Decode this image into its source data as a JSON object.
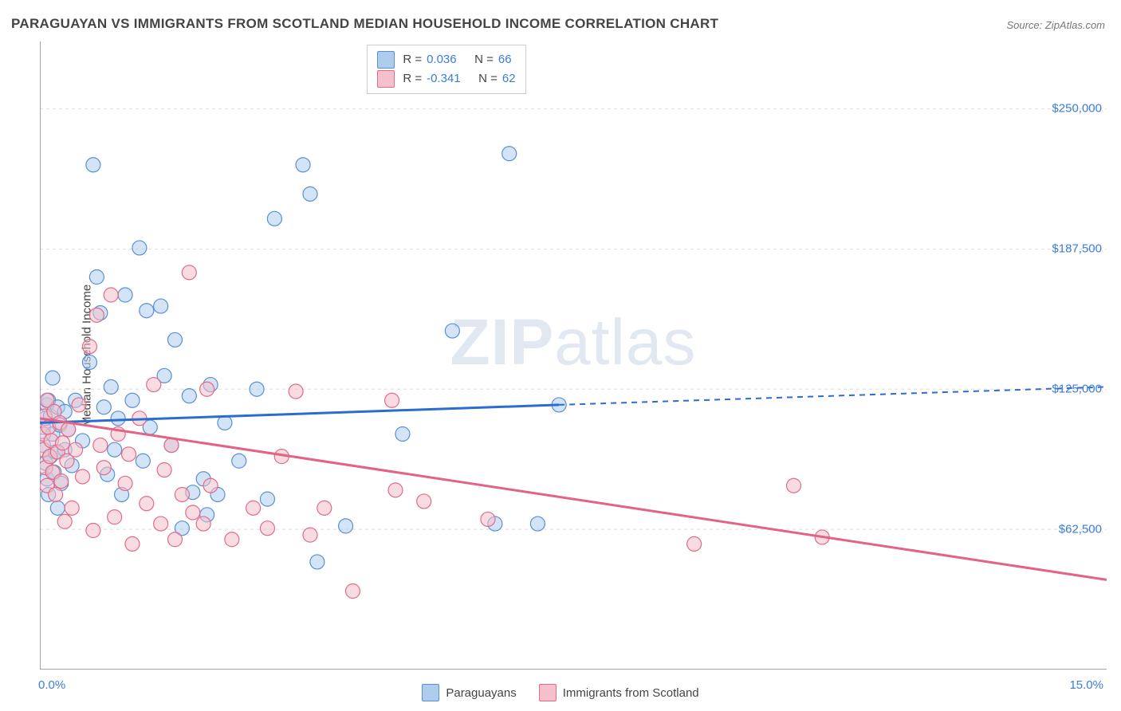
{
  "title": "PARAGUAYAN VS IMMIGRANTS FROM SCOTLAND MEDIAN HOUSEHOLD INCOME CORRELATION CHART",
  "source": "Source: ZipAtlas.com",
  "ylabel": "Median Household Income",
  "watermark_a": "ZIP",
  "watermark_b": "atlas",
  "chart": {
    "type": "scatter",
    "background_color": "#ffffff",
    "grid_color": "#dddddd",
    "axis_color": "#888888",
    "xlim": [
      0,
      15
    ],
    "ylim": [
      0,
      280000
    ],
    "x_ticks": [
      {
        "v": 0,
        "label": "0.0%"
      },
      {
        "v": 15,
        "label": "15.0%"
      }
    ],
    "y_gridlines": [
      62500,
      125000,
      187500,
      250000
    ],
    "y_tick_labels": {
      "62500": "$62,500",
      "125000": "$125,000",
      "187500": "$187,500",
      "250000": "$250,000"
    },
    "series": [
      {
        "name": "Paraguayans",
        "fill": "#aecdee",
        "stroke": "#5a8fd6",
        "fill_opacity": 0.55,
        "marker_radius": 9,
        "R_label": "R =",
        "R": "0.036",
        "N_label": "N =",
        "N": "66",
        "trend": {
          "x1": 0,
          "y1": 110000,
          "x2": 7.3,
          "y2": 118000,
          "x2_ext": 15,
          "y2_ext": 126000,
          "color": "#2b6cd1",
          "width": 3
        },
        "points": [
          [
            0.05,
            108000
          ],
          [
            0.05,
            100000
          ],
          [
            0.08,
            112000
          ],
          [
            0.08,
            92000
          ],
          [
            0.1,
            118000
          ],
          [
            0.1,
            85000
          ],
          [
            0.12,
            120000
          ],
          [
            0.12,
            78000
          ],
          [
            0.15,
            113000
          ],
          [
            0.15,
            95000
          ],
          [
            0.18,
            105000
          ],
          [
            0.18,
            130000
          ],
          [
            0.2,
            88000
          ],
          [
            0.22,
            97000
          ],
          [
            0.25,
            117000
          ],
          [
            0.25,
            72000
          ],
          [
            0.28,
            109000
          ],
          [
            0.3,
            83000
          ],
          [
            0.35,
            115000
          ],
          [
            0.35,
            98000
          ],
          [
            0.4,
            107000
          ],
          [
            0.45,
            91000
          ],
          [
            0.5,
            120000
          ],
          [
            0.6,
            102000
          ],
          [
            0.7,
            137000
          ],
          [
            0.75,
            225000
          ],
          [
            0.8,
            175000
          ],
          [
            0.85,
            159000
          ],
          [
            0.9,
            117000
          ],
          [
            0.95,
            87000
          ],
          [
            1.0,
            126000
          ],
          [
            1.05,
            98000
          ],
          [
            1.1,
            112000
          ],
          [
            1.15,
            78000
          ],
          [
            1.2,
            167000
          ],
          [
            1.3,
            120000
          ],
          [
            1.4,
            188000
          ],
          [
            1.45,
            93000
          ],
          [
            1.5,
            160000
          ],
          [
            1.55,
            108000
          ],
          [
            1.7,
            162000
          ],
          [
            1.75,
            131000
          ],
          [
            1.85,
            100000
          ],
          [
            1.9,
            147000
          ],
          [
            2.0,
            63000
          ],
          [
            2.1,
            122000
          ],
          [
            2.15,
            79000
          ],
          [
            2.3,
            85000
          ],
          [
            2.35,
            69000
          ],
          [
            2.4,
            127000
          ],
          [
            2.5,
            78000
          ],
          [
            2.6,
            110000
          ],
          [
            2.8,
            93000
          ],
          [
            3.05,
            125000
          ],
          [
            3.2,
            76000
          ],
          [
            3.3,
            201000
          ],
          [
            3.7,
            225000
          ],
          [
            3.8,
            212000
          ],
          [
            3.9,
            48000
          ],
          [
            4.3,
            64000
          ],
          [
            5.1,
            105000
          ],
          [
            5.8,
            151000
          ],
          [
            6.4,
            65000
          ],
          [
            6.6,
            230000
          ],
          [
            7.0,
            65000
          ],
          [
            7.3,
            118000
          ]
        ]
      },
      {
        "name": "Immigrants from Scotland",
        "fill": "#f3c0cb",
        "stroke": "#e26b88",
        "fill_opacity": 0.55,
        "marker_radius": 9,
        "R_label": "R =",
        "R": "-0.341",
        "N_label": "N =",
        "N": "62",
        "trend": {
          "x1": 0,
          "y1": 112000,
          "x2": 15,
          "y2": 40000,
          "color": "#e26385",
          "width": 3
        },
        "points": [
          [
            0.05,
            105000
          ],
          [
            0.05,
            98000
          ],
          [
            0.07,
            113000
          ],
          [
            0.08,
            90000
          ],
          [
            0.1,
            120000
          ],
          [
            0.1,
            82000
          ],
          [
            0.12,
            108000
          ],
          [
            0.14,
            95000
          ],
          [
            0.16,
            102000
          ],
          [
            0.18,
            88000
          ],
          [
            0.2,
            115000
          ],
          [
            0.22,
            78000
          ],
          [
            0.25,
            97000
          ],
          [
            0.28,
            110000
          ],
          [
            0.3,
            84000
          ],
          [
            0.32,
            101000
          ],
          [
            0.35,
            66000
          ],
          [
            0.38,
            93000
          ],
          [
            0.4,
            107000
          ],
          [
            0.45,
            72000
          ],
          [
            0.5,
            98000
          ],
          [
            0.55,
            118000
          ],
          [
            0.6,
            86000
          ],
          [
            0.7,
            144000
          ],
          [
            0.75,
            62000
          ],
          [
            0.8,
            158000
          ],
          [
            0.85,
            100000
          ],
          [
            0.9,
            90000
          ],
          [
            1.0,
            167000
          ],
          [
            1.05,
            68000
          ],
          [
            1.1,
            105000
          ],
          [
            1.2,
            83000
          ],
          [
            1.25,
            96000
          ],
          [
            1.3,
            56000
          ],
          [
            1.4,
            112000
          ],
          [
            1.5,
            74000
          ],
          [
            1.6,
            127000
          ],
          [
            1.7,
            65000
          ],
          [
            1.75,
            89000
          ],
          [
            1.85,
            100000
          ],
          [
            1.9,
            58000
          ],
          [
            2.0,
            78000
          ],
          [
            2.1,
            177000
          ],
          [
            2.15,
            70000
          ],
          [
            2.3,
            65000
          ],
          [
            2.35,
            125000
          ],
          [
            2.4,
            82000
          ],
          [
            2.7,
            58000
          ],
          [
            3.0,
            72000
          ],
          [
            3.2,
            63000
          ],
          [
            3.4,
            95000
          ],
          [
            3.6,
            124000
          ],
          [
            3.8,
            60000
          ],
          [
            4.0,
            72000
          ],
          [
            4.4,
            35000
          ],
          [
            4.95,
            120000
          ],
          [
            5.0,
            80000
          ],
          [
            5.4,
            75000
          ],
          [
            6.3,
            67000
          ],
          [
            9.2,
            56000
          ],
          [
            10.6,
            82000
          ],
          [
            11.0,
            59000
          ]
        ]
      }
    ]
  }
}
